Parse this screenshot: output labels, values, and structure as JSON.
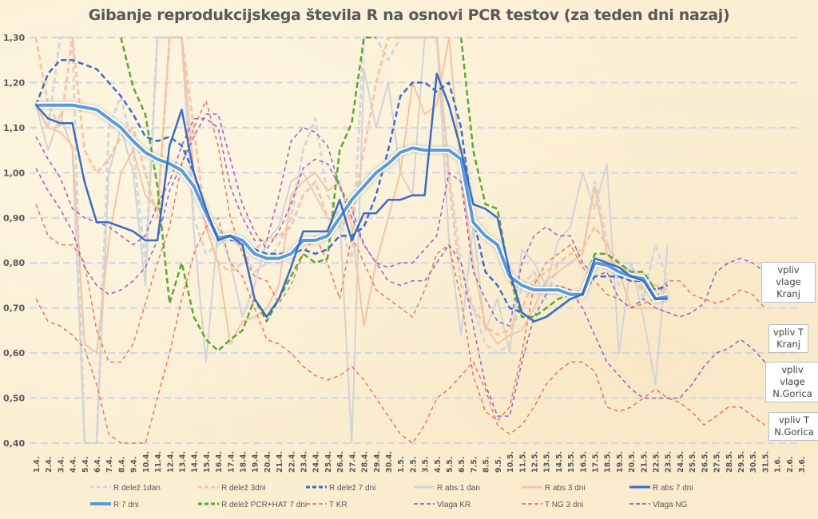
{
  "chart_data": {
    "type": "line",
    "title": "Gibanje reprodukcijskega števila R na osnovi PCR testov (za teden dni nazaj)",
    "xlabel": "",
    "ylabel": "",
    "ylim": [
      0.4,
      1.3
    ],
    "yticks": [
      "0,40",
      "0,50",
      "0,60",
      "0,70",
      "0,80",
      "0,90",
      "1,00",
      "1,10",
      "1,20",
      "1,30"
    ],
    "grid": true,
    "legend_position": "bottom",
    "categories": [
      "1.4.",
      "2.4.",
      "3.4.",
      "4.4.",
      "5.4.",
      "6.4.",
      "7.4.",
      "8.4.",
      "9.4.",
      "10.4.",
      "11.4.",
      "12.4.",
      "13.4.",
      "14.4.",
      "15.4.",
      "16.4.",
      "17.4.",
      "18.4.",
      "19.4.",
      "20.4.",
      "21.4.",
      "22.4.",
      "23.4.",
      "24.4.",
      "25.4.",
      "26.4.",
      "27.4.",
      "28.4.",
      "29.4.",
      "30.4.",
      "1.5.",
      "2.5.",
      "3.5.",
      "4.5.",
      "5.5.",
      "6.5.",
      "7.5.",
      "8.5.",
      "9.5.",
      "10.5.",
      "11.5.",
      "12.5.",
      "13.5.",
      "14.5.",
      "15.5.",
      "16.5.",
      "17.5.",
      "18.5.",
      "19.5.",
      "20.5.",
      "21.5.",
      "22.5.",
      "23.5.",
      "24.5.",
      "25.5.",
      "26.5.",
      "27.5.",
      "28.5.",
      "29.5.",
      "30.5.",
      "31.5.",
      "1.6.",
      "2.6.",
      "3.6."
    ],
    "series": [
      {
        "name": "R delež 1dan",
        "color": "#d3d7de",
        "style": "dash",
        "width": 3,
        "values": [
          1.15,
          1.1,
          1.3,
          1.3,
          0.4,
          0.4,
          1.1,
          1.17,
          1.05,
          0.8,
          1.3,
          1.3,
          1.3,
          0.9,
          0.82,
          0.84,
          0.86,
          0.83,
          0.78,
          0.8,
          0.84,
          0.9,
          1.05,
          1.12,
          0.95,
          0.9,
          0.8,
          1.3,
          1.3,
          1.25,
          1.3,
          1.3,
          1.3,
          1.3,
          1.0,
          0.8,
          0.7,
          0.62,
          0.6,
          0.62,
          0.75,
          0.78,
          0.72,
          0.8,
          0.8,
          0.82,
          0.98,
          0.85,
          0.75,
          0.8,
          0.72,
          0.84,
          0.76,
          null,
          null,
          null,
          null,
          null,
          null,
          null,
          null,
          null,
          null,
          null
        ]
      },
      {
        "name": "R delež 3dni",
        "color": "#f7c5a8",
        "style": "dash",
        "width": 3,
        "values": [
          1.3,
          1.15,
          1.1,
          1.3,
          1.05,
          1.0,
          1.03,
          1.08,
          1.1,
          1.0,
          0.9,
          1.3,
          1.3,
          1.1,
          0.88,
          0.8,
          0.78,
          0.8,
          0.83,
          0.85,
          0.86,
          0.88,
          0.95,
          0.98,
          0.9,
          0.88,
          0.9,
          1.05,
          1.2,
          1.3,
          1.3,
          1.3,
          1.3,
          1.3,
          0.98,
          0.75,
          0.7,
          0.66,
          0.64,
          0.65,
          0.7,
          0.76,
          0.78,
          0.8,
          0.82,
          0.83,
          0.88,
          0.84,
          0.8,
          0.77,
          0.74,
          0.75,
          0.74,
          null,
          null,
          null,
          null,
          null,
          null,
          null,
          null,
          null,
          null,
          null
        ]
      },
      {
        "name": "R delež 7dni",
        "color": "#3a6fc9",
        "style": "dash",
        "width": 2.5,
        "values": [
          1.15,
          1.22,
          1.25,
          1.25,
          1.24,
          1.23,
          1.2,
          1.17,
          1.13,
          1.08,
          1.07,
          1.08,
          1.06,
          1.0,
          0.92,
          0.86,
          0.85,
          0.85,
          0.83,
          0.82,
          0.82,
          0.82,
          0.83,
          0.82,
          0.83,
          0.86,
          0.86,
          0.88,
          0.95,
          1.05,
          1.17,
          1.2,
          1.2,
          1.18,
          1.2,
          1.1,
          0.9,
          0.78,
          0.75,
          0.7,
          0.69,
          0.67,
          0.68,
          0.7,
          0.72,
          0.73,
          0.77,
          0.77,
          0.77,
          0.76,
          0.76,
          0.74,
          0.75,
          null,
          null,
          null,
          null,
          null,
          null,
          null,
          null,
          null,
          null,
          null
        ]
      },
      {
        "name": "R abs 1 dan",
        "color": "#d3d3d6",
        "style": "solid",
        "width": 2,
        "values": [
          1.15,
          1.05,
          1.13,
          1.05,
          0.4,
          0.4,
          1.0,
          1.1,
          1.0,
          0.75,
          1.3,
          1.3,
          1.3,
          0.87,
          0.58,
          0.88,
          0.8,
          0.68,
          0.75,
          0.85,
          0.88,
          0.98,
          1.0,
          0.95,
          0.9,
          0.9,
          0.4,
          1.23,
          1.1,
          1.2,
          1.0,
          0.95,
          1.3,
          1.3,
          0.85,
          0.64,
          0.88,
          0.65,
          0.72,
          0.6,
          0.83,
          0.8,
          0.75,
          0.85,
          0.88,
          1.0,
          0.92,
          1.02,
          0.6,
          0.8,
          0.68,
          0.53,
          0.84,
          null,
          null,
          null,
          null,
          null,
          null,
          null,
          null,
          null,
          null,
          null
        ]
      },
      {
        "name": "R abs 3 dni",
        "color": "#f7c3a3",
        "style": "solid",
        "width": 2,
        "values": [
          1.15,
          1.1,
          1.09,
          1.06,
          0.62,
          0.6,
          0.85,
          1.0,
          1.05,
          0.95,
          0.92,
          1.3,
          1.3,
          1.0,
          0.88,
          0.8,
          0.62,
          0.67,
          0.68,
          0.7,
          0.75,
          0.95,
          0.98,
          1.0,
          0.96,
          0.98,
          0.88,
          0.66,
          0.8,
          0.9,
          1.0,
          1.2,
          1.13,
          1.15,
          1.3,
          1.0,
          0.8,
          0.66,
          0.62,
          0.64,
          0.65,
          0.7,
          0.76,
          0.78,
          0.8,
          0.82,
          0.97,
          0.82,
          0.78,
          0.7,
          0.7,
          0.7,
          0.69,
          null,
          null,
          null,
          null,
          null,
          null,
          null,
          null,
          null,
          null,
          null
        ]
      },
      {
        "name": "R abs 7 dni",
        "color": "#3c6cc0",
        "style": "solid",
        "width": 2.5,
        "values": [
          1.15,
          1.12,
          1.11,
          1.11,
          0.98,
          0.89,
          0.89,
          0.88,
          0.87,
          0.85,
          0.85,
          1.06,
          1.14,
          1.0,
          0.92,
          0.85,
          0.86,
          0.84,
          0.72,
          0.68,
          0.72,
          0.79,
          0.87,
          0.87,
          0.87,
          0.94,
          0.85,
          0.91,
          0.91,
          0.94,
          0.94,
          0.95,
          0.95,
          1.22,
          1.15,
          1.05,
          0.93,
          0.92,
          0.9,
          0.78,
          0.69,
          0.67,
          0.68,
          0.7,
          0.72,
          0.73,
          0.81,
          0.8,
          0.79,
          0.77,
          0.76,
          0.72,
          0.72,
          null,
          null,
          null,
          null,
          null,
          null,
          null,
          null,
          null,
          null,
          null
        ]
      },
      {
        "name": "R 7 dni",
        "color": "#5b9bd5",
        "style": "solid-glow",
        "width": 4,
        "values": [
          1.15,
          1.15,
          1.15,
          1.15,
          1.145,
          1.14,
          1.12,
          1.1,
          1.07,
          1.045,
          1.03,
          1.02,
          1.005,
          0.97,
          0.91,
          0.855,
          0.86,
          0.85,
          0.82,
          0.81,
          0.81,
          0.82,
          0.85,
          0.85,
          0.86,
          0.9,
          0.94,
          0.97,
          1.0,
          1.02,
          1.045,
          1.055,
          1.05,
          1.05,
          1.05,
          1.03,
          0.89,
          0.86,
          0.84,
          0.77,
          0.75,
          0.74,
          0.74,
          0.74,
          0.73,
          0.73,
          0.8,
          0.795,
          0.78,
          0.77,
          0.765,
          0.72,
          0.725,
          null,
          null,
          null,
          null,
          null,
          null,
          null,
          null,
          null,
          null,
          null
        ]
      },
      {
        "name": "R delež PCR+HAT 7 dni",
        "color": "#5aa832",
        "style": "dash",
        "width": 2.5,
        "values": [
          null,
          null,
          null,
          null,
          null,
          null,
          null,
          1.3,
          1.19,
          1.13,
          0.97,
          0.71,
          0.8,
          0.68,
          0.63,
          0.605,
          0.63,
          0.65,
          0.72,
          0.67,
          0.72,
          0.77,
          0.82,
          0.8,
          0.81,
          1.05,
          1.11,
          1.3,
          1.3,
          null,
          null,
          null,
          null,
          null,
          null,
          1.3,
          1.05,
          0.93,
          0.92,
          0.77,
          0.68,
          0.68,
          0.7,
          0.72,
          0.73,
          0.74,
          0.82,
          0.82,
          0.8,
          0.78,
          0.78,
          0.74,
          null,
          null,
          null,
          null,
          null,
          null,
          null,
          null,
          null,
          null,
          null,
          null
        ]
      },
      {
        "name": "T KR",
        "color": "#ee7559",
        "style": "dash-thin",
        "width": 1.5,
        "values": [
          0.93,
          0.86,
          0.84,
          0.84,
          0.8,
          0.65,
          0.58,
          0.58,
          0.62,
          0.71,
          0.8,
          0.88,
          1.02,
          1.1,
          1.16,
          1.06,
          0.9,
          0.82,
          0.77,
          0.76,
          0.71,
          0.75,
          0.82,
          0.86,
          0.8,
          0.72,
          0.86,
          0.8,
          0.74,
          0.72,
          0.7,
          0.68,
          0.74,
          0.82,
          0.84,
          0.72,
          0.55,
          0.47,
          0.45,
          0.48,
          0.6,
          0.75,
          0.8,
          0.82,
          0.84,
          0.79,
          0.76,
          0.73,
          0.72,
          0.7,
          0.71,
          0.72,
          0.76,
          0.76,
          0.73,
          0.72,
          0.71,
          0.72,
          0.74,
          0.73,
          0.7,
          null,
          null,
          null
        ]
      },
      {
        "name": "Vlaga KR",
        "color": "#9460c1",
        "style": "dash-thin",
        "width": 1.5,
        "values": [
          1.08,
          1.03,
          0.99,
          0.92,
          0.9,
          0.89,
          0.88,
          0.86,
          0.84,
          0.86,
          0.93,
          0.98,
          1.06,
          1.12,
          1.12,
          1.1,
          0.97,
          0.9,
          0.85,
          0.85,
          0.95,
          1.07,
          1.1,
          1.09,
          1.06,
          0.97,
          0.92,
          0.84,
          0.8,
          0.79,
          0.8,
          0.8,
          0.83,
          0.86,
          1.0,
          0.98,
          0.78,
          0.72,
          0.67,
          0.66,
          0.8,
          0.86,
          0.88,
          0.86,
          0.86,
          0.8,
          0.77,
          0.78,
          0.72,
          0.7,
          0.72,
          0.7,
          0.69,
          0.68,
          0.69,
          0.71,
          0.78,
          0.8,
          0.81,
          0.8,
          0.78,
          0.73,
          null,
          null
        ]
      },
      {
        "name": "T NG 3 dni",
        "color": "#ee7559",
        "style": "dash-thin",
        "width": 1.5,
        "values": [
          0.72,
          0.67,
          0.66,
          0.64,
          0.61,
          0.53,
          0.42,
          0.38,
          0.35,
          0.4,
          0.5,
          0.6,
          0.72,
          0.82,
          0.88,
          0.9,
          0.8,
          0.77,
          0.7,
          0.63,
          0.62,
          0.6,
          0.57,
          0.55,
          0.54,
          0.55,
          0.57,
          0.54,
          0.5,
          0.46,
          0.42,
          0.4,
          0.44,
          0.5,
          0.52,
          0.55,
          0.58,
          0.52,
          0.44,
          0.42,
          0.44,
          0.48,
          0.53,
          0.56,
          0.58,
          0.58,
          0.56,
          0.48,
          0.47,
          0.48,
          0.5,
          0.52,
          0.5,
          0.49,
          0.47,
          0.44,
          0.46,
          0.48,
          0.48,
          0.46,
          0.44,
          null,
          null,
          null
        ]
      },
      {
        "name": "Vlaga NG",
        "color": "#9460c1",
        "style": "dash-thin",
        "width": 1.5,
        "values": [
          1.01,
          0.96,
          0.92,
          0.87,
          0.79,
          0.75,
          0.73,
          0.74,
          0.76,
          0.79,
          0.85,
          0.96,
          1.02,
          1.08,
          1.13,
          1.13,
          1.03,
          0.93,
          0.87,
          0.83,
          0.87,
          0.93,
          1.01,
          1.03,
          1.02,
          0.97,
          0.9,
          0.84,
          0.8,
          0.76,
          0.75,
          0.76,
          0.76,
          0.8,
          0.84,
          0.8,
          0.66,
          0.53,
          0.46,
          0.46,
          0.58,
          0.68,
          0.73,
          0.75,
          0.74,
          0.7,
          0.64,
          0.58,
          0.55,
          0.52,
          0.5,
          0.5,
          0.5,
          0.5,
          0.53,
          0.57,
          0.6,
          0.61,
          0.63,
          0.61,
          0.58,
          0.55,
          null,
          null
        ]
      }
    ]
  },
  "legend": [
    {
      "label": "R delež 1dan"
    },
    {
      "label": "R delež 3dni"
    },
    {
      "label": "R delež 7 dni"
    },
    {
      "label": "R abs 1 dan"
    },
    {
      "label": "R abs 3 dni"
    },
    {
      "label": "R abs 7 dni"
    },
    {
      "label": "R 7 dni"
    },
    {
      "label": "R delež PCR+HAT 7 dni"
    },
    {
      "label": "T KR"
    },
    {
      "label": "Vlaga KR"
    },
    {
      "label": "T NG 3 dni"
    },
    {
      "label": "Vlaga NG"
    }
  ],
  "annotations": [
    {
      "line1": "vpliv vlage",
      "line2": "Kranj"
    },
    {
      "line1": "vpliv T",
      "line2": "Kranj"
    },
    {
      "line1": "vpliv vlage",
      "line2": "N.Gorica"
    },
    {
      "line1": "vpliv T",
      "line2": "N.Gorica"
    }
  ]
}
